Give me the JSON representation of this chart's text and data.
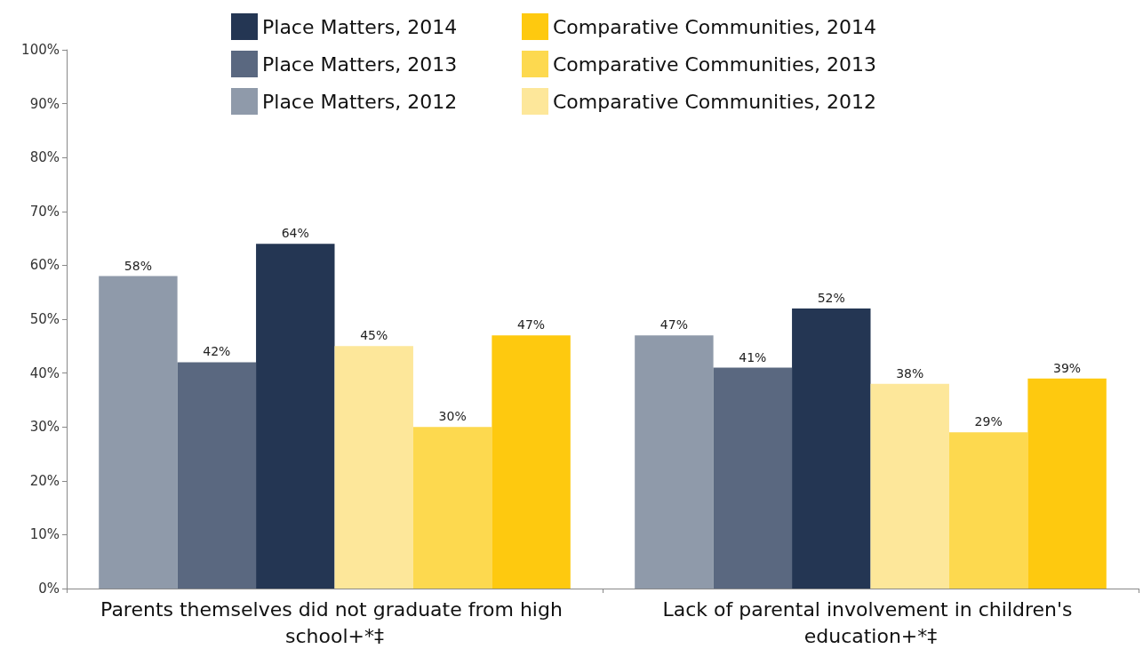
{
  "chart_data": {
    "type": "bar",
    "categories": [
      "Parents themselves did not graduate from high school+*‡",
      "Lack of parental involvement in children's education+*‡"
    ],
    "series": [
      {
        "name": "Place Matters, 2012",
        "color": "#8f9aaa",
        "values": [
          58,
          47
        ],
        "value_labels": [
          "58%",
          "47%"
        ]
      },
      {
        "name": "Place Matters, 2013",
        "color": "#5a6880",
        "values": [
          42,
          41
        ],
        "value_labels": [
          "42%",
          "41%"
        ]
      },
      {
        "name": "Place Matters, 2014",
        "color": "#243653",
        "values": [
          64,
          52
        ],
        "value_labels": [
          "64%",
          "52%"
        ]
      },
      {
        "name": "Comparative Communities, 2012",
        "color": "#fde79a",
        "values": [
          45,
          38
        ],
        "value_labels": [
          "45%",
          "38%"
        ]
      },
      {
        "name": "Comparative Communities, 2013",
        "color": "#fdd94f",
        "values": [
          30,
          29
        ],
        "value_labels": [
          "30%",
          "29%"
        ]
      },
      {
        "name": "Comparative Communities, 2014",
        "color": "#fec90f",
        "values": [
          47,
          39
        ],
        "value_labels": [
          "47%",
          "39%"
        ]
      }
    ],
    "ylim": [
      0,
      100
    ],
    "yticks": [
      {
        "value": 0,
        "label": "0%"
      },
      {
        "value": 10,
        "label": "10%"
      },
      {
        "value": 20,
        "label": "20%"
      },
      {
        "value": 30,
        "label": "30%"
      },
      {
        "value": 40,
        "label": "40%"
      },
      {
        "value": 50,
        "label": "50%"
      },
      {
        "value": 60,
        "label": "60%"
      },
      {
        "value": 70,
        "label": "70%"
      },
      {
        "value": 80,
        "label": "80%"
      },
      {
        "value": 90,
        "label": "90%"
      },
      {
        "value": 100,
        "label": "100%"
      }
    ],
    "grid": false,
    "legend": "top"
  }
}
